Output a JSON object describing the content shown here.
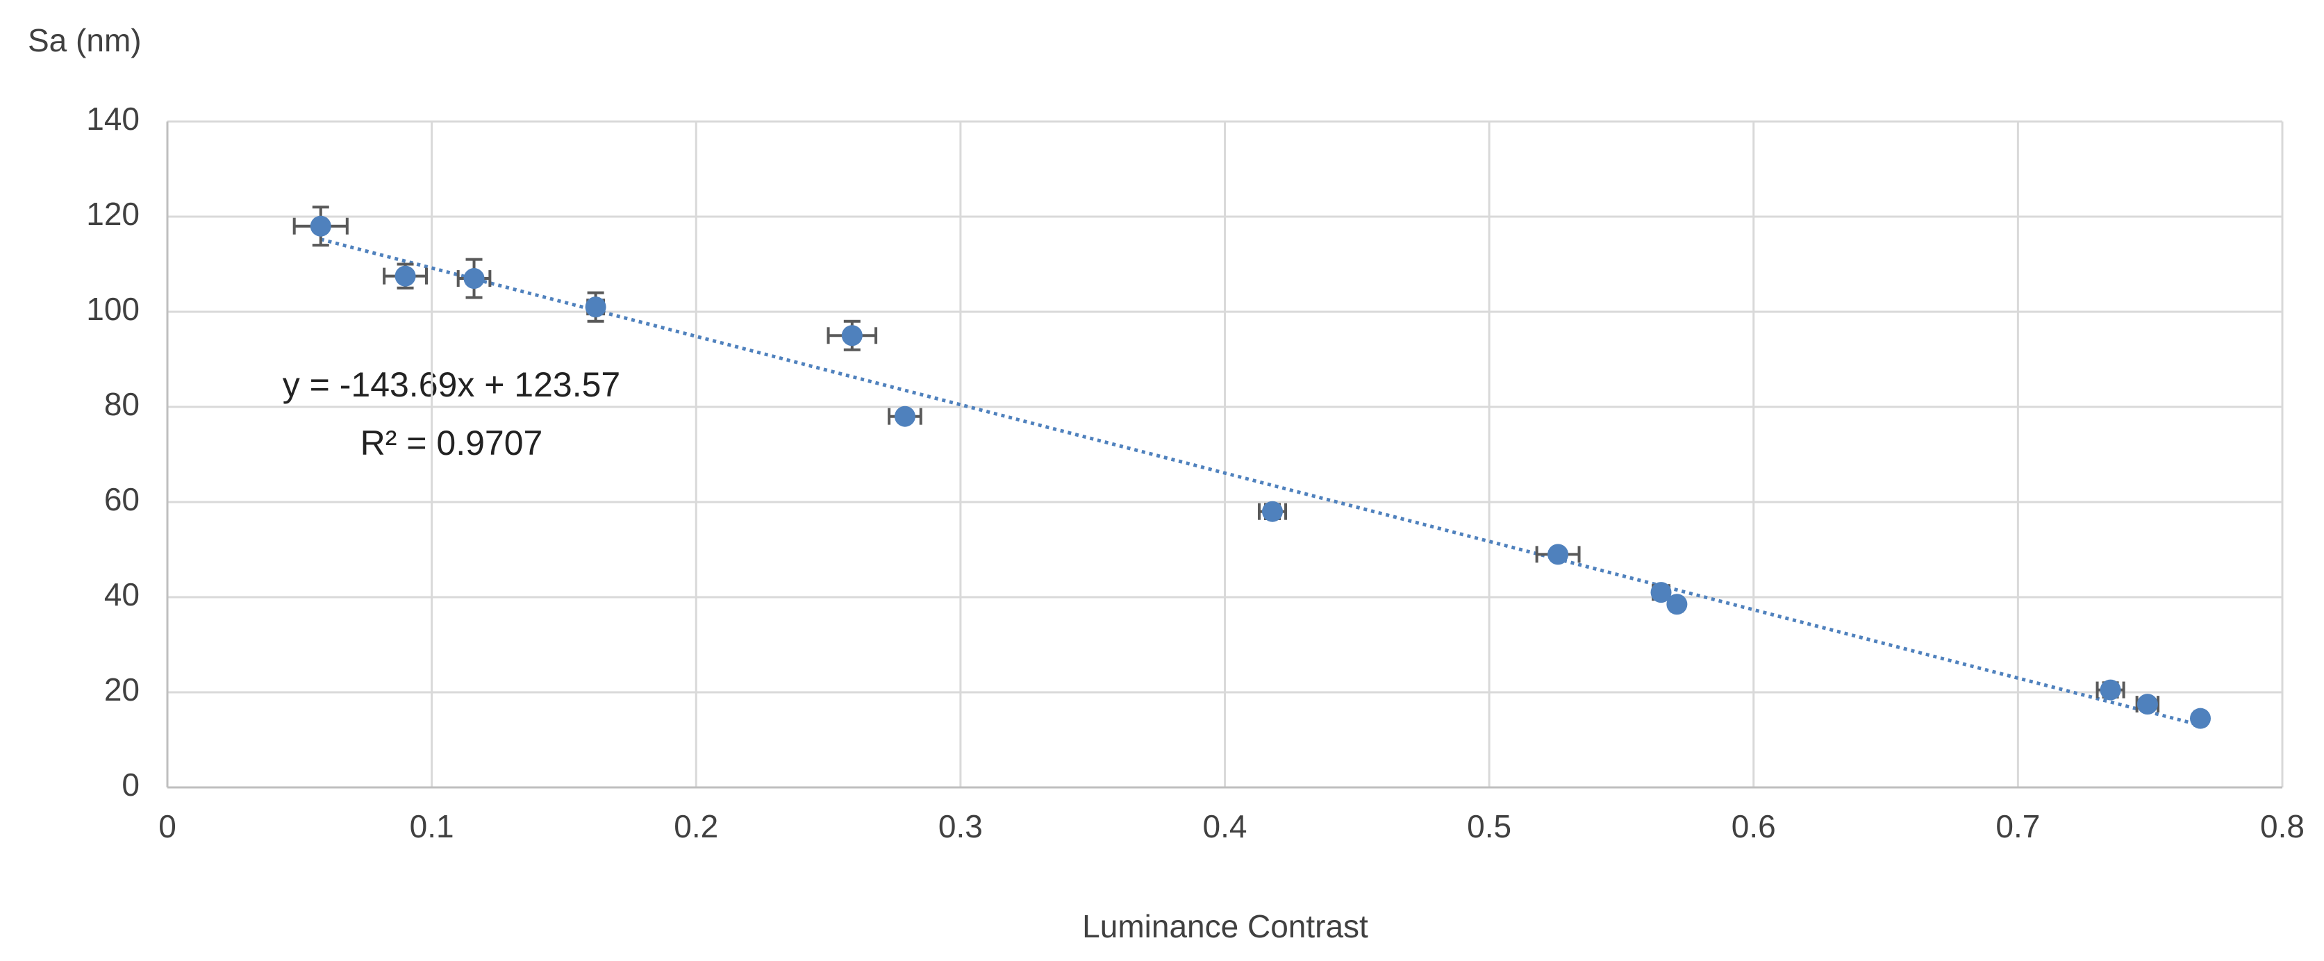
{
  "chart_data": {
    "type": "scatter",
    "y_label": "Sa (nm)",
    "x_label": "Luminance Contrast",
    "x": [
      0.058,
      0.09,
      0.116,
      0.162,
      0.259,
      0.279,
      0.418,
      0.526,
      0.565,
      0.571,
      0.735,
      0.749,
      0.769
    ],
    "values": [
      118,
      107.5,
      107,
      101,
      95,
      78,
      58,
      49,
      41,
      38.5,
      20.5,
      17.5,
      14.5
    ],
    "x_err": [
      0.01,
      0.008,
      0.006,
      0.003,
      0.009,
      0.006,
      0.005,
      0.008,
      0.003,
      0.002,
      0.005,
      0.004,
      0.002
    ],
    "y_err": [
      4,
      2.5,
      4,
      3,
      3,
      1,
      1.5,
      1,
      1,
      0.5,
      1.5,
      1,
      0.5
    ],
    "color": "#4f81bd",
    "error_color": "#595959",
    "trendline": {
      "slope": -143.69,
      "intercept": 123.57,
      "equation": "y = -143.69x + 123.57",
      "r2": "R² = 0.9707",
      "color": "#4f81bd"
    },
    "xlim": [
      0,
      0.8
    ],
    "xticks": [
      0,
      0.1,
      0.2,
      0.3,
      0.4,
      0.5,
      0.6,
      0.7,
      0.8
    ],
    "ylim": [
      0,
      140
    ],
    "yticks": [
      0,
      20,
      40,
      60,
      80,
      100,
      120,
      140
    ],
    "grid": true
  }
}
